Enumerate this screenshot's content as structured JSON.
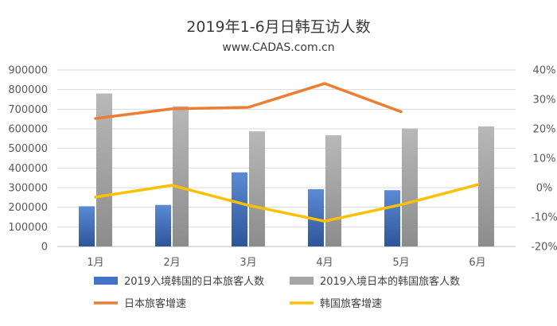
{
  "chart_data": {
    "type": "bar",
    "title": "2019年1-6月日韩互访人数",
    "subtitle": "www.CADAS.com.cn",
    "categories": [
      "1月",
      "2月",
      "3月",
      "4月",
      "5月",
      "6月"
    ],
    "y_left": {
      "min": 0,
      "max": 900000,
      "step": 100000,
      "ticks": [
        "0",
        "100000",
        "200000",
        "300000",
        "400000",
        "500000",
        "600000",
        "700000",
        "800000",
        "900000"
      ]
    },
    "y_right": {
      "min": -20,
      "max": 40,
      "step": 10,
      "ticks": [
        "-20%",
        "-10%",
        "0%",
        "10%",
        "20%",
        "30%",
        "40%"
      ]
    },
    "grid": true,
    "legend_position": "bottom",
    "series": [
      {
        "name": "2019入境韩国的日本旅客人数",
        "kind": "bar",
        "axis": "left",
        "color": "#4472C4",
        "values": [
          205000,
          212000,
          378000,
          292000,
          287000,
          null
        ]
      },
      {
        "name": "2019入境日本的韩国旅客人数",
        "kind": "bar",
        "axis": "left",
        "color": "#A5A5A5",
        "values": [
          780000,
          715000,
          587000,
          567000,
          602000,
          612000
        ]
      },
      {
        "name": "日本旅客增速",
        "kind": "line",
        "axis": "right",
        "color": "#ED7D31",
        "values": [
          23.5,
          26.8,
          27.3,
          35.4,
          25.8,
          null
        ]
      },
      {
        "name": "韩国旅客增速",
        "kind": "line",
        "axis": "right",
        "color": "#FFC000",
        "values": [
          -3.2,
          0.8,
          -6.0,
          -11.4,
          -5.8,
          1.0
        ]
      }
    ]
  }
}
